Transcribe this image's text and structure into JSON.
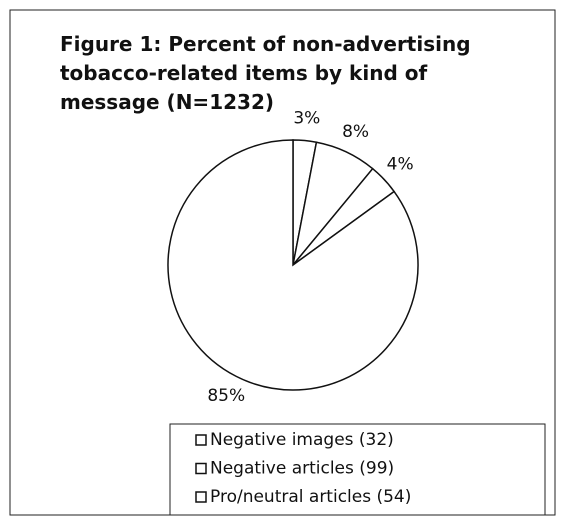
{
  "chart_data": {
    "type": "pie",
    "title": "Figure 1: Percent of non-advertising tobacco-related items by kind of message (N=1232)",
    "categories": [
      "Negative images (32)",
      "Negative articles (99)",
      "Pro/neutral articles (54)",
      null
    ],
    "values": [
      3,
      8,
      4,
      85
    ],
    "value_labels": [
      "3%",
      "8%",
      "4%",
      "85%"
    ],
    "color": "#ffffff"
  }
}
